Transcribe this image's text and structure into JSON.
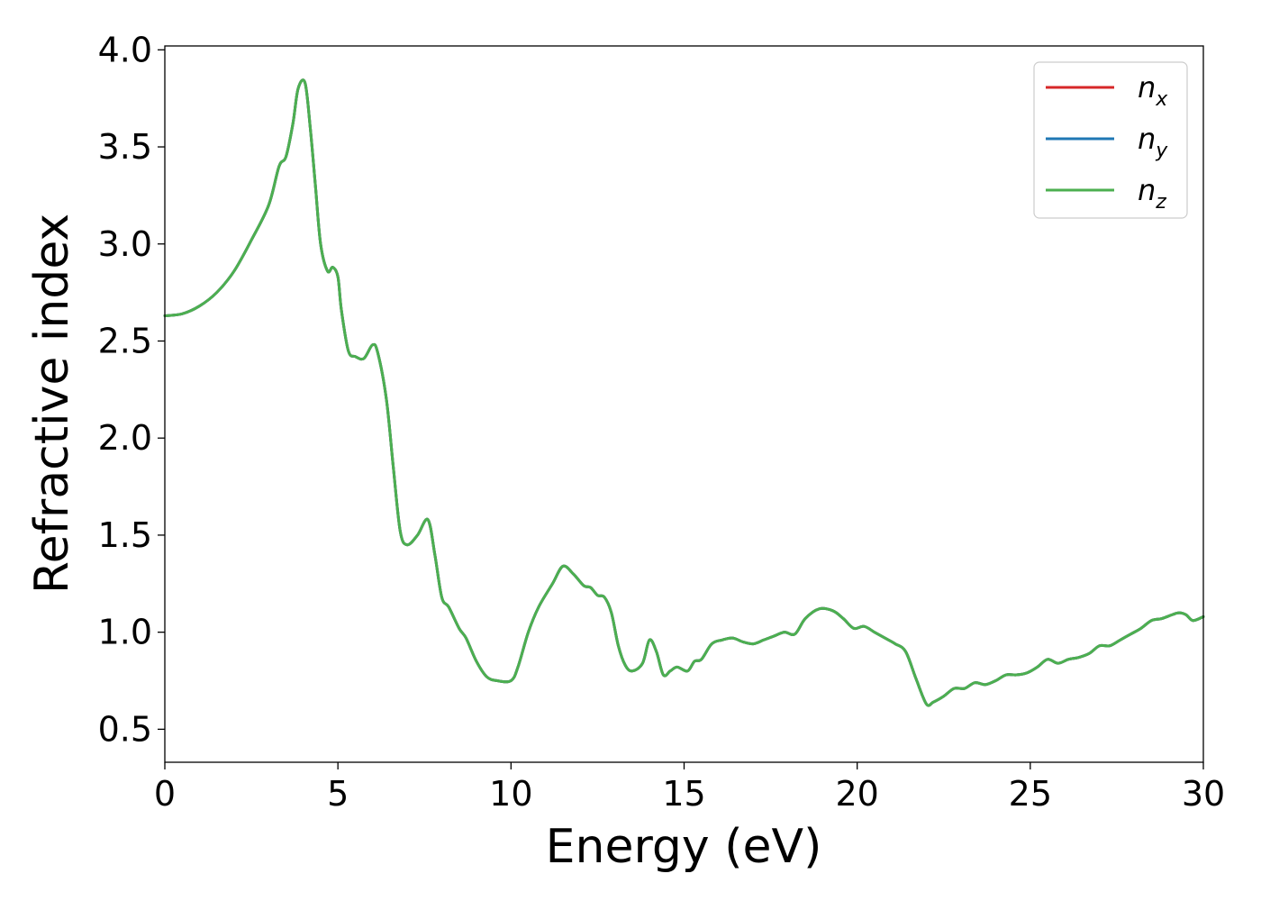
{
  "chart_data": {
    "type": "line",
    "xlabel": "Energy (eV)",
    "ylabel": "Refractive index",
    "xlim": [
      0,
      30
    ],
    "ylim": [
      0.33,
      4.02
    ],
    "xticks": [
      "0",
      "5",
      "10",
      "15",
      "20",
      "25",
      "30"
    ],
    "yticks": [
      "0.5",
      "1.0",
      "1.5",
      "2.0",
      "2.5",
      "3.0",
      "3.5",
      "4.0"
    ],
    "grid": false,
    "legend_position": "top-right",
    "series": [
      {
        "name": "n",
        "subscript": "x",
        "color": "#d62728"
      },
      {
        "name": "n",
        "subscript": "y",
        "color": "#1f77b4"
      },
      {
        "name": "n",
        "subscript": "z",
        "color": "#4caf50"
      }
    ],
    "curve_x": [
      0,
      0.5,
      1.0,
      1.5,
      2.0,
      2.5,
      3.0,
      3.3,
      3.5,
      3.7,
      3.85,
      4.05,
      4.2,
      4.35,
      4.5,
      4.7,
      4.85,
      5.0,
      5.1,
      5.3,
      5.5,
      5.75,
      6.0,
      6.15,
      6.4,
      6.6,
      6.8,
      7.0,
      7.3,
      7.6,
      7.8,
      8.0,
      8.2,
      8.5,
      8.7,
      9.0,
      9.3,
      9.6,
      10.0,
      10.2,
      10.5,
      10.8,
      11.2,
      11.5,
      11.8,
      12.1,
      12.3,
      12.5,
      12.7,
      12.9,
      13.1,
      13.3,
      13.5,
      13.8,
      14.0,
      14.2,
      14.4,
      14.6,
      14.8,
      15.1,
      15.3,
      15.5,
      15.8,
      16.1,
      16.4,
      16.7,
      17.0,
      17.3,
      17.6,
      17.9,
      18.2,
      18.5,
      18.9,
      19.3,
      19.6,
      19.9,
      20.2,
      20.5,
      20.8,
      21.1,
      21.4,
      21.7,
      22.0,
      22.2,
      22.5,
      22.8,
      23.1,
      23.4,
      23.7,
      24.0,
      24.3,
      24.6,
      24.9,
      25.2,
      25.5,
      25.8,
      26.1,
      26.4,
      26.7,
      27.0,
      27.3,
      27.6,
      27.9,
      28.2,
      28.5,
      28.8,
      29.1,
      29.3,
      29.5,
      29.7,
      30.0
    ],
    "curve_y": [
      2.63,
      2.64,
      2.68,
      2.75,
      2.86,
      3.02,
      3.2,
      3.4,
      3.45,
      3.62,
      3.8,
      3.83,
      3.6,
      3.3,
      3.0,
      2.86,
      2.88,
      2.83,
      2.66,
      2.45,
      2.42,
      2.41,
      2.48,
      2.44,
      2.2,
      1.85,
      1.52,
      1.45,
      1.5,
      1.58,
      1.4,
      1.18,
      1.13,
      1.02,
      0.97,
      0.85,
      0.77,
      0.75,
      0.75,
      0.82,
      1.0,
      1.13,
      1.25,
      1.34,
      1.3,
      1.24,
      1.23,
      1.19,
      1.18,
      1.1,
      0.93,
      0.83,
      0.8,
      0.84,
      0.96,
      0.9,
      0.78,
      0.8,
      0.82,
      0.8,
      0.85,
      0.86,
      0.94,
      0.96,
      0.97,
      0.95,
      0.94,
      0.96,
      0.98,
      1.0,
      0.99,
      1.07,
      1.12,
      1.11,
      1.07,
      1.02,
      1.03,
      1.0,
      0.97,
      0.94,
      0.9,
      0.76,
      0.63,
      0.64,
      0.67,
      0.71,
      0.71,
      0.74,
      0.73,
      0.75,
      0.78,
      0.78,
      0.79,
      0.82,
      0.86,
      0.84,
      0.86,
      0.87,
      0.89,
      0.93,
      0.93,
      0.96,
      0.99,
      1.02,
      1.06,
      1.07,
      1.09,
      1.1,
      1.09,
      1.06,
      1.08
    ]
  }
}
